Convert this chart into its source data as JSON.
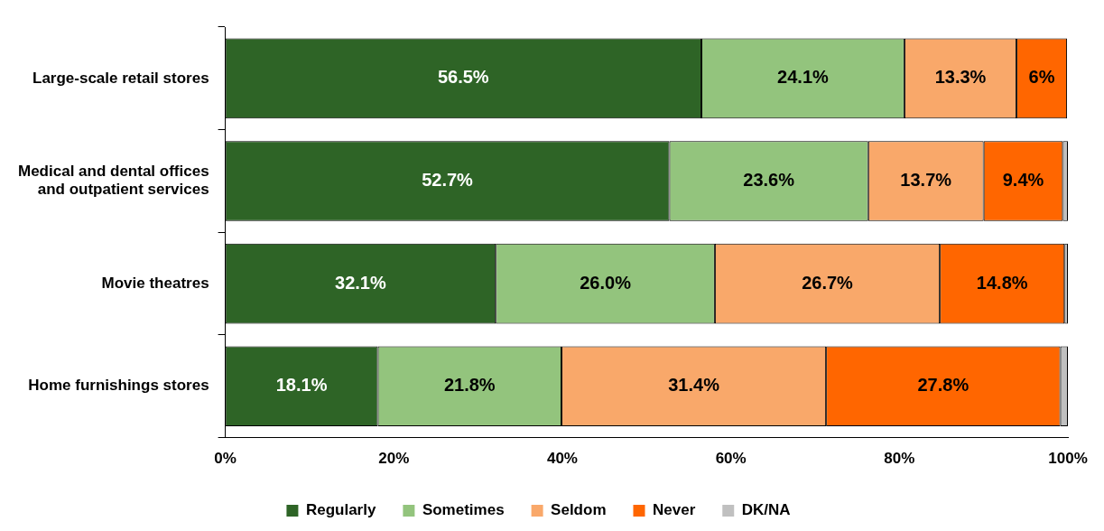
{
  "chart_data": {
    "type": "bar",
    "orientation": "horizontal",
    "stacked": true,
    "categories": [
      "Large-scale retail stores",
      "Medical and dental offices and outpatient services",
      "Movie theatres",
      "Home furnishings stores"
    ],
    "series": [
      {
        "name": "Regularly",
        "color": "#2e6426",
        "values": [
          56.5,
          52.7,
          32.1,
          18.1
        ],
        "value_labels": [
          "56.5%",
          "52.7%",
          "32.1%",
          "18.1%"
        ]
      },
      {
        "name": "Sometimes",
        "color": "#93c47d",
        "values": [
          24.1,
          23.6,
          26.0,
          21.8
        ],
        "value_labels": [
          "24.1%",
          "23.6%",
          "26.0%",
          "21.8%"
        ]
      },
      {
        "name": "Seldom",
        "color": "#f9a86a",
        "values": [
          13.3,
          13.7,
          26.7,
          31.4
        ],
        "value_labels": [
          "13.3%",
          "13.7%",
          "26.7%",
          "31.4%"
        ]
      },
      {
        "name": "Never",
        "color": "#ff6600",
        "values": [
          6,
          9.4,
          14.8,
          27.8
        ],
        "value_labels": [
          "6%",
          "9.4%",
          "14.8%",
          "27.8%"
        ]
      },
      {
        "name": "DK/NA",
        "color": "#c0c0c0",
        "values": [
          null,
          0.6,
          0.4,
          0.9
        ],
        "value_labels": [
          null,
          null,
          null,
          null
        ]
      }
    ],
    "xlim": [
      0,
      100
    ],
    "xticks": [
      {
        "value": 0,
        "label": "0%"
      },
      {
        "value": 20,
        "label": "20%"
      },
      {
        "value": 40,
        "label": "40%"
      },
      {
        "value": 60,
        "label": "60%"
      },
      {
        "value": 80,
        "label": "80%"
      },
      {
        "value": 100,
        "label": "100%"
      }
    ],
    "grid": false,
    "legend": "bottom"
  }
}
